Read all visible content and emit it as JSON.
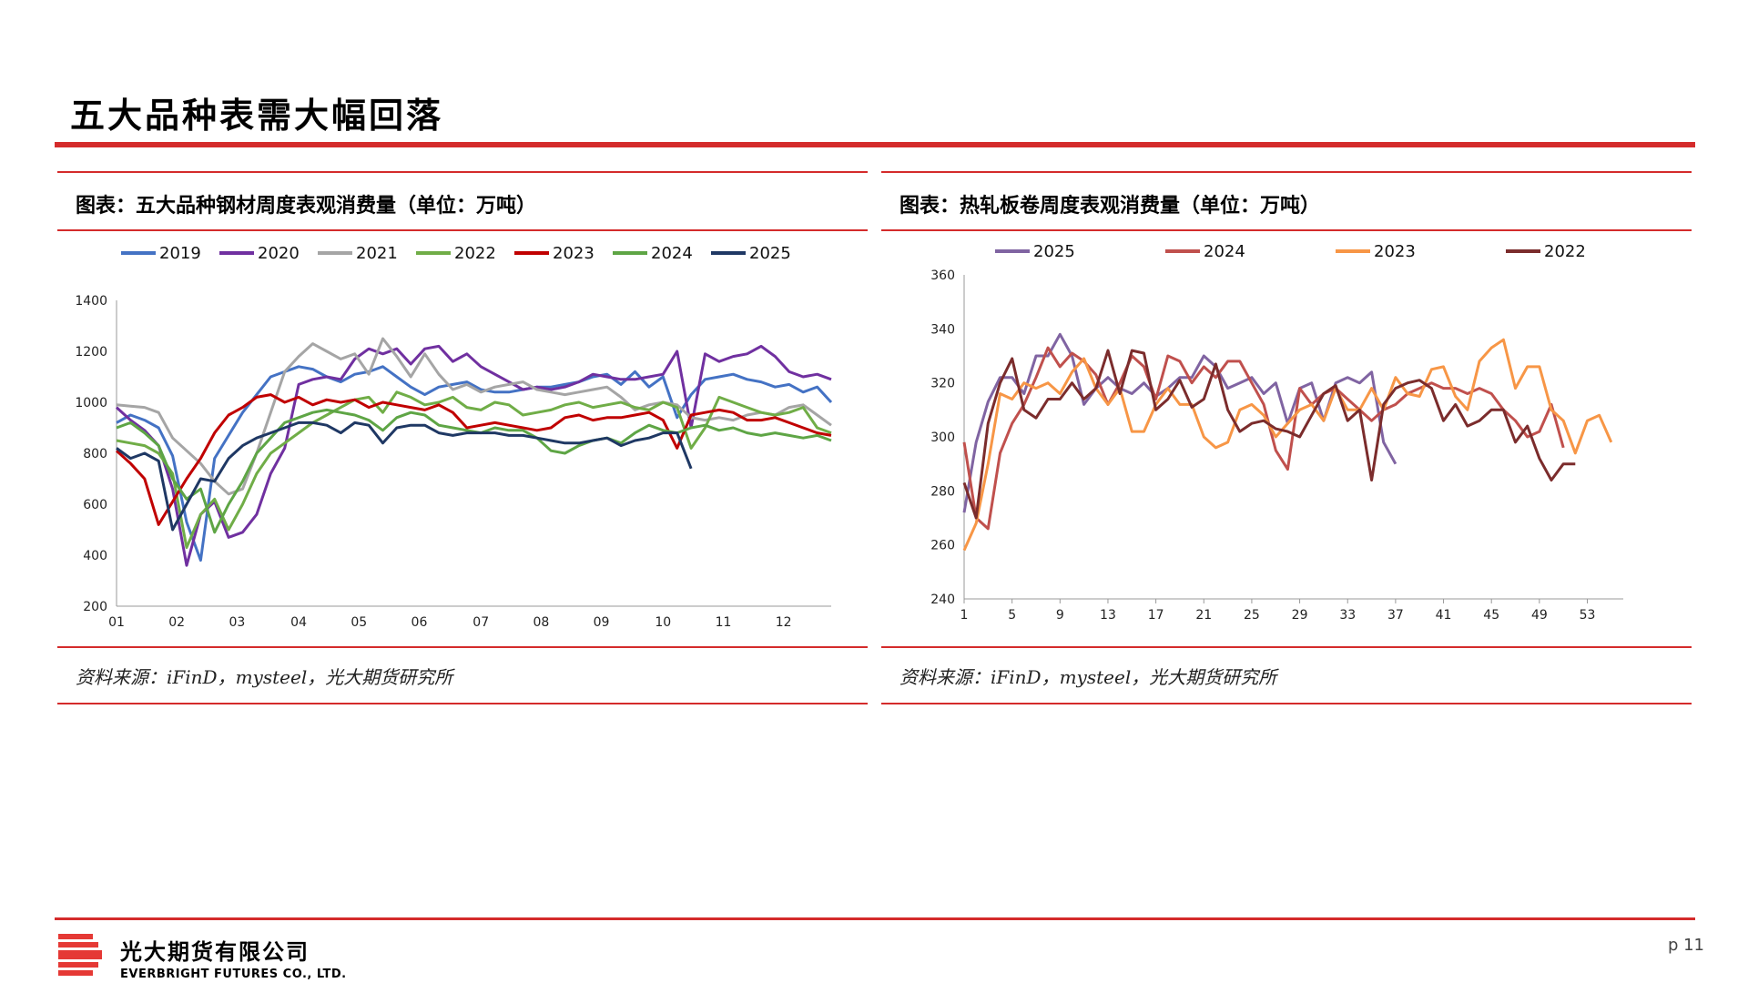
{
  "page": {
    "title": "五大品种表需大幅回落",
    "page_number": "p 11",
    "brand_color": "#d42b2b"
  },
  "company": {
    "name_cn": "光大期货有限公司",
    "name_en": "EVERBRIGHT FUTURES CO., LTD."
  },
  "panels": [
    {
      "title": "图表：五大品种钢材周度表观消费量（单位：万吨）",
      "source": "资料来源：iFinD，mysteel，光大期货研究所"
    },
    {
      "title": "图表：热轧板卷周度表观消费量（单位：万吨）",
      "source": "资料来源：iFinD，mysteel，光大期货研究所"
    }
  ],
  "chart_data": [
    {
      "type": "line",
      "title": "图表：五大品种钢材周度表观消费量（单位：万吨）",
      "ylim": [
        200,
        1400
      ],
      "yticks": [
        200,
        400,
        600,
        800,
        1000,
        1200,
        1400
      ],
      "xlim": [
        1,
        52
      ],
      "xtick_labels": [
        "01",
        "02",
        "03",
        "04",
        "05",
        "06",
        "07",
        "08",
        "09",
        "10",
        "11",
        "12"
      ],
      "xtick_positions": [
        1,
        5.3,
        9.6,
        14,
        18.3,
        22.6,
        27,
        31.3,
        35.6,
        40,
        44.3,
        48.6
      ],
      "grid": false,
      "legend": "top",
      "series": [
        {
          "name": "2019",
          "color": "#4472c4",
          "values": [
            920,
            950,
            930,
            900,
            790,
            530,
            380,
            780,
            870,
            960,
            1030,
            1100,
            1120,
            1140,
            1130,
            1100,
            1080,
            1110,
            1120,
            1140,
            1100,
            1060,
            1030,
            1060,
            1070,
            1080,
            1050,
            1040,
            1040,
            1050,
            1060,
            1060,
            1070,
            1080,
            1100,
            1110,
            1070,
            1120,
            1060,
            1100,
            940,
            1030,
            1090,
            1100,
            1110,
            1090,
            1080,
            1060,
            1070,
            1040,
            1060,
            1000
          ]
        },
        {
          "name": "2020",
          "color": "#7030a0",
          "values": [
            980,
            930,
            890,
            830,
            660,
            360,
            560,
            610,
            470,
            490,
            560,
            720,
            820,
            1070,
            1090,
            1100,
            1090,
            1170,
            1210,
            1190,
            1210,
            1150,
            1210,
            1220,
            1160,
            1190,
            1140,
            1110,
            1080,
            1050,
            1060,
            1050,
            1060,
            1080,
            1110,
            1100,
            1090,
            1090,
            1100,
            1110,
            1200,
            900,
            1190,
            1160,
            1180,
            1190,
            1220,
            1180,
            1120,
            1100,
            1110,
            1090
          ]
        },
        {
          "name": "2021",
          "color": "#a5a5a5",
          "values": [
            990,
            985,
            980,
            960,
            860,
            810,
            760,
            690,
            640,
            660,
            800,
            960,
            1120,
            1180,
            1230,
            1200,
            1170,
            1190,
            1110,
            1250,
            1180,
            1100,
            1190,
            1110,
            1050,
            1070,
            1040,
            1060,
            1070,
            1080,
            1050,
            1040,
            1030,
            1040,
            1050,
            1060,
            1020,
            970,
            990,
            1000,
            990,
            940,
            930,
            940,
            930,
            950,
            960,
            950,
            980,
            990,
            950,
            910
          ]
        },
        {
          "name": "2022",
          "color": "#70ad47",
          "values": [
            850,
            840,
            830,
            800,
            720,
            430,
            560,
            620,
            500,
            600,
            720,
            800,
            840,
            880,
            920,
            950,
            980,
            1010,
            1020,
            960,
            1040,
            1020,
            990,
            1000,
            1020,
            980,
            970,
            1000,
            990,
            950,
            960,
            970,
            990,
            1000,
            980,
            990,
            1000,
            980,
            970,
            1000,
            980,
            820,
            900,
            1020,
            1000,
            980,
            960,
            950,
            960,
            980,
            900,
            880
          ]
        },
        {
          "name": "2023",
          "color": "#c00000",
          "values": [
            810,
            760,
            700,
            520,
            610,
            700,
            780,
            880,
            950,
            980,
            1020,
            1030,
            1000,
            1020,
            990,
            1010,
            1000,
            1010,
            980,
            1000,
            990,
            980,
            970,
            990,
            960,
            900,
            910,
            920,
            910,
            900,
            890,
            900,
            940,
            950,
            930,
            940,
            940,
            950,
            960,
            930,
            820,
            950,
            960,
            970,
            960,
            930,
            930,
            940,
            920,
            900,
            880,
            870
          ]
        },
        {
          "name": "2024",
          "color": "#5ea545",
          "values": [
            900,
            920,
            880,
            830,
            700,
            620,
            660,
            490,
            600,
            690,
            800,
            860,
            920,
            940,
            960,
            970,
            960,
            950,
            930,
            890,
            940,
            960,
            950,
            910,
            900,
            890,
            880,
            900,
            890,
            890,
            860,
            810,
            800,
            830,
            850,
            860,
            840,
            880,
            910,
            890,
            880,
            900,
            910,
            890,
            900,
            880,
            870,
            880,
            870,
            860,
            870,
            850
          ]
        },
        {
          "name": "2025",
          "color": "#1f3864",
          "values": [
            820,
            780,
            800,
            770,
            500,
            600,
            700,
            690,
            780,
            830,
            860,
            880,
            900,
            920,
            920,
            910,
            880,
            920,
            910,
            840,
            900,
            910,
            910,
            880,
            870,
            880,
            880,
            880,
            870,
            870,
            860,
            850,
            840,
            840,
            850,
            860,
            830,
            850,
            860,
            880,
            880,
            740
          ]
        }
      ]
    },
    {
      "type": "line",
      "title": "图表：热轧板卷周度表观消费量（单位：万吨）",
      "ylim": [
        240,
        360
      ],
      "yticks": [
        240,
        260,
        280,
        300,
        320,
        340,
        360
      ],
      "xlim": [
        1,
        56
      ],
      "xticks": [
        1,
        5,
        9,
        13,
        17,
        21,
        25,
        29,
        33,
        37,
        41,
        45,
        49,
        53
      ],
      "grid": false,
      "legend": "top",
      "series": [
        {
          "name": "2025",
          "color": "#8064a2",
          "x": [
            1,
            2,
            3,
            4,
            5,
            6,
            7,
            8,
            9,
            10,
            11,
            12,
            13,
            14,
            15,
            16,
            17,
            18,
            19,
            20,
            21,
            22,
            23,
            24,
            25,
            26,
            27,
            28,
            29,
            30,
            31,
            32,
            33,
            34,
            35,
            36,
            37
          ],
          "values": [
            272,
            298,
            313,
            322,
            322,
            316,
            330,
            330,
            338,
            330,
            312,
            318,
            322,
            318,
            316,
            320,
            315,
            318,
            322,
            322,
            330,
            326,
            318,
            320,
            322,
            316,
            320,
            305,
            318,
            320,
            306,
            320,
            322,
            320,
            324,
            298,
            290
          ]
        },
        {
          "name": "2024",
          "color": "#c0504d",
          "x": [
            1,
            2,
            3,
            4,
            5,
            6,
            7,
            8,
            9,
            10,
            11,
            12,
            13,
            14,
            15,
            16,
            17,
            18,
            19,
            20,
            21,
            22,
            23,
            24,
            25,
            26,
            27,
            28,
            29,
            30,
            31,
            32,
            33,
            34,
            35,
            36,
            37,
            38,
            39,
            40,
            41,
            42,
            43,
            44,
            45,
            46,
            47,
            48,
            49,
            50,
            51
          ],
          "values": [
            298,
            270,
            266,
            294,
            305,
            312,
            322,
            333,
            326,
            331,
            328,
            323,
            312,
            320,
            330,
            326,
            314,
            330,
            328,
            320,
            326,
            322,
            328,
            328,
            320,
            312,
            295,
            288,
            318,
            312,
            316,
            318,
            314,
            310,
            306,
            310,
            312,
            316,
            318,
            320,
            318,
            318,
            316,
            318,
            316,
            310,
            306,
            300,
            302,
            312,
            296
          ]
        },
        {
          "name": "2023",
          "color": "#f79646",
          "x": [
            1,
            2,
            3,
            4,
            5,
            6,
            7,
            8,
            9,
            10,
            11,
            12,
            13,
            14,
            15,
            16,
            17,
            18,
            19,
            20,
            21,
            22,
            23,
            24,
            25,
            26,
            27,
            28,
            29,
            30,
            31,
            32,
            33,
            34,
            35,
            36,
            37,
            38,
            39,
            40,
            41,
            42,
            43,
            44,
            45,
            46,
            47,
            48,
            49,
            50,
            51,
            52,
            53,
            54,
            55
          ],
          "values": [
            258,
            268,
            290,
            316,
            314,
            320,
            318,
            320,
            316,
            324,
            329,
            318,
            312,
            318,
            302,
            302,
            312,
            318,
            312,
            312,
            300,
            296,
            298,
            310,
            312,
            308,
            300,
            305,
            310,
            312,
            306,
            318,
            310,
            310,
            318,
            310,
            322,
            316,
            315,
            325,
            326,
            315,
            310,
            328,
            333,
            336,
            318,
            326,
            326,
            310,
            306,
            294,
            306,
            308,
            298
          ]
        },
        {
          "name": "2022",
          "color": "#7b2c2c",
          "x": [
            1,
            2,
            3,
            4,
            5,
            6,
            7,
            8,
            9,
            10,
            11,
            12,
            13,
            14,
            15,
            16,
            17,
            18,
            19,
            20,
            21,
            22,
            23,
            24,
            25,
            26,
            27,
            28,
            29,
            30,
            31,
            32,
            33,
            34,
            35,
            36,
            37,
            38,
            39,
            40,
            41,
            42,
            43,
            44,
            45,
            46,
            47,
            48,
            49,
            50,
            51,
            52
          ],
          "values": [
            283,
            270,
            305,
            320,
            329,
            310,
            307,
            314,
            314,
            320,
            314,
            318,
            332,
            316,
            332,
            331,
            310,
            314,
            321,
            311,
            314,
            327,
            310,
            302,
            305,
            306,
            303,
            302,
            300,
            308,
            316,
            319,
            306,
            310,
            284,
            312,
            318,
            320,
            321,
            318,
            306,
            312,
            304,
            306,
            310,
            310,
            298,
            304,
            292,
            284,
            290,
            290
          ]
        }
      ]
    }
  ]
}
